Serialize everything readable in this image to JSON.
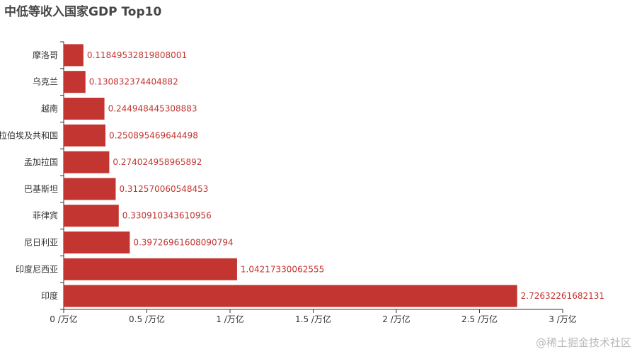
{
  "chart_data": {
    "type": "bar",
    "orientation": "horizontal",
    "title": "中低等收入国家GDP Top10",
    "categories": [
      "摩洛哥",
      "乌克兰",
      "越南",
      "阿拉伯埃及共和国",
      "孟加拉国",
      "巴基斯坦",
      "菲律宾",
      "尼日利亚",
      "印度尼西亚",
      "印度"
    ],
    "values": [
      0.11849532819808001,
      0.130832374404882,
      0.244948445308883,
      0.250895469644498,
      0.274024958965892,
      0.312570060548453,
      0.330910343610956,
      0.39726961608090794,
      1.04217330062555,
      2.72632261682131
    ],
    "value_labels": [
      "0.11849532819808001",
      "0.130832374404882",
      "0.244948445308883",
      "0.250895469644498",
      "0.274024958965892",
      "0.312570060548453",
      "0.330910343610956",
      "0.39726961608090794",
      "1.04217330062555",
      "2.72632261682131"
    ],
    "xaxis": {
      "ticks": [
        0,
        0.5,
        1,
        1.5,
        2,
        2.5,
        3
      ],
      "tick_labels": [
        "0 /万亿",
        "0.5 /万亿",
        "1 /万亿",
        "1.5 /万亿",
        "2 /万亿",
        "2.5 /万亿",
        "3 /万亿"
      ],
      "xlim": [
        0,
        3
      ]
    },
    "xlabel": "",
    "ylabel": "",
    "grid": false,
    "bar_color": "#c23531",
    "label_color": "#c23531"
  },
  "watermark": "@稀土掘金技术社区"
}
